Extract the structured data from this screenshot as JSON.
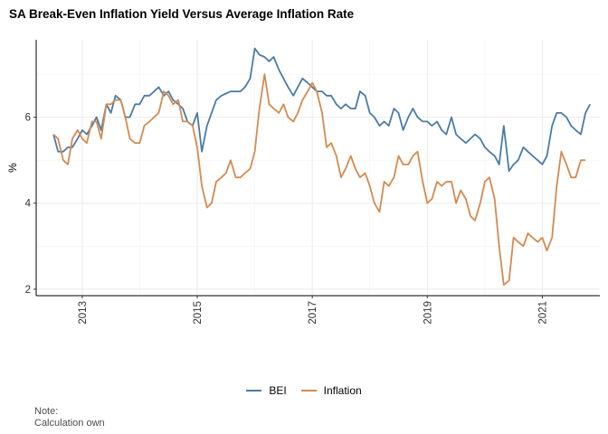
{
  "chart_data": {
    "type": "line",
    "title": "SA Break-Even Inflation Yield Versus Average Inflation Rate",
    "ylabel": "%",
    "xlabel": "",
    "xlim": [
      2012.2,
      2022.0
    ],
    "ylim": [
      1.85,
      7.8
    ],
    "x_ticks": [
      2013,
      2015,
      2017,
      2019,
      2021
    ],
    "y_ticks": [
      2,
      4,
      6
    ],
    "grid": true,
    "legend_position": "bottom",
    "series": [
      {
        "name": "BEI",
        "color": "#4A7BA7",
        "points": [
          [
            2012.5,
            5.6
          ],
          [
            2012.58,
            5.2
          ],
          [
            2012.67,
            5.2
          ],
          [
            2012.75,
            5.3
          ],
          [
            2012.83,
            5.3
          ],
          [
            2012.92,
            5.5
          ],
          [
            2013.0,
            5.7
          ],
          [
            2013.08,
            5.6
          ],
          [
            2013.17,
            5.8
          ],
          [
            2013.25,
            6.0
          ],
          [
            2013.33,
            5.7
          ],
          [
            2013.42,
            6.3
          ],
          [
            2013.5,
            6.1
          ],
          [
            2013.58,
            6.5
          ],
          [
            2013.67,
            6.4
          ],
          [
            2013.75,
            6.0
          ],
          [
            2013.83,
            6.0
          ],
          [
            2013.92,
            6.3
          ],
          [
            2014.0,
            6.3
          ],
          [
            2014.08,
            6.5
          ],
          [
            2014.17,
            6.5
          ],
          [
            2014.25,
            6.6
          ],
          [
            2014.33,
            6.7
          ],
          [
            2014.42,
            6.5
          ],
          [
            2014.5,
            6.6
          ],
          [
            2014.58,
            6.4
          ],
          [
            2014.67,
            6.3
          ],
          [
            2014.75,
            6.2
          ],
          [
            2014.83,
            5.9
          ],
          [
            2014.92,
            5.8
          ],
          [
            2015.0,
            6.1
          ],
          [
            2015.08,
            5.2
          ],
          [
            2015.17,
            5.8
          ],
          [
            2015.25,
            6.1
          ],
          [
            2015.33,
            6.4
          ],
          [
            2015.42,
            6.5
          ],
          [
            2015.5,
            6.55
          ],
          [
            2015.58,
            6.6
          ],
          [
            2015.67,
            6.6
          ],
          [
            2015.75,
            6.6
          ],
          [
            2015.83,
            6.7
          ],
          [
            2015.92,
            6.9
          ],
          [
            2016.0,
            7.6
          ],
          [
            2016.08,
            7.45
          ],
          [
            2016.17,
            7.4
          ],
          [
            2016.25,
            7.3
          ],
          [
            2016.33,
            7.4
          ],
          [
            2016.42,
            7.1
          ],
          [
            2016.5,
            6.9
          ],
          [
            2016.58,
            6.7
          ],
          [
            2016.67,
            6.5
          ],
          [
            2016.75,
            6.7
          ],
          [
            2016.83,
            6.9
          ],
          [
            2016.92,
            6.8
          ],
          [
            2017.0,
            6.7
          ],
          [
            2017.08,
            6.6
          ],
          [
            2017.17,
            6.6
          ],
          [
            2017.25,
            6.5
          ],
          [
            2017.33,
            6.5
          ],
          [
            2017.42,
            6.3
          ],
          [
            2017.5,
            6.2
          ],
          [
            2017.58,
            6.3
          ],
          [
            2017.67,
            6.2
          ],
          [
            2017.75,
            6.2
          ],
          [
            2017.83,
            6.6
          ],
          [
            2017.92,
            6.5
          ],
          [
            2018.0,
            6.1
          ],
          [
            2018.08,
            6.0
          ],
          [
            2018.17,
            5.8
          ],
          [
            2018.25,
            5.9
          ],
          [
            2018.33,
            5.8
          ],
          [
            2018.42,
            6.2
          ],
          [
            2018.5,
            6.1
          ],
          [
            2018.58,
            5.7
          ],
          [
            2018.67,
            6.0
          ],
          [
            2018.75,
            6.2
          ],
          [
            2018.83,
            6.0
          ],
          [
            2018.92,
            5.9
          ],
          [
            2019.0,
            5.9
          ],
          [
            2019.08,
            5.8
          ],
          [
            2019.17,
            5.9
          ],
          [
            2019.25,
            5.7
          ],
          [
            2019.33,
            5.6
          ],
          [
            2019.42,
            6.0
          ],
          [
            2019.5,
            5.6
          ],
          [
            2019.58,
            5.5
          ],
          [
            2019.67,
            5.4
          ],
          [
            2019.75,
            5.5
          ],
          [
            2019.83,
            5.6
          ],
          [
            2019.92,
            5.5
          ],
          [
            2020.0,
            5.3
          ],
          [
            2020.08,
            5.2
          ],
          [
            2020.17,
            5.1
          ],
          [
            2020.25,
            4.9
          ],
          [
            2020.33,
            5.8
          ],
          [
            2020.42,
            4.75
          ],
          [
            2020.5,
            4.9
          ],
          [
            2020.58,
            5.0
          ],
          [
            2020.67,
            5.3
          ],
          [
            2020.75,
            5.2
          ],
          [
            2020.83,
            5.1
          ],
          [
            2020.92,
            5.0
          ],
          [
            2021.0,
            4.9
          ],
          [
            2021.08,
            5.1
          ],
          [
            2021.17,
            5.8
          ],
          [
            2021.25,
            6.1
          ],
          [
            2021.33,
            6.1
          ],
          [
            2021.42,
            6.0
          ],
          [
            2021.5,
            5.8
          ],
          [
            2021.58,
            5.7
          ],
          [
            2021.67,
            5.6
          ],
          [
            2021.75,
            6.1
          ],
          [
            2021.83,
            6.3
          ]
        ]
      },
      {
        "name": "Inflation",
        "color": "#D58A4F",
        "points": [
          [
            2012.5,
            5.6
          ],
          [
            2012.58,
            5.5
          ],
          [
            2012.67,
            5.0
          ],
          [
            2012.75,
            4.9
          ],
          [
            2012.83,
            5.5
          ],
          [
            2012.92,
            5.7
          ],
          [
            2013.0,
            5.5
          ],
          [
            2013.08,
            5.4
          ],
          [
            2013.17,
            5.9
          ],
          [
            2013.25,
            5.9
          ],
          [
            2013.33,
            5.5
          ],
          [
            2013.42,
            6.3
          ],
          [
            2013.5,
            6.3
          ],
          [
            2013.58,
            6.4
          ],
          [
            2013.67,
            6.4
          ],
          [
            2013.75,
            6.0
          ],
          [
            2013.83,
            5.5
          ],
          [
            2013.92,
            5.4
          ],
          [
            2014.0,
            5.4
          ],
          [
            2014.08,
            5.8
          ],
          [
            2014.17,
            5.9
          ],
          [
            2014.25,
            6.0
          ],
          [
            2014.33,
            6.1
          ],
          [
            2014.42,
            6.6
          ],
          [
            2014.5,
            6.5
          ],
          [
            2014.58,
            6.3
          ],
          [
            2014.67,
            6.4
          ],
          [
            2014.75,
            5.9
          ],
          [
            2014.83,
            5.9
          ],
          [
            2014.92,
            5.8
          ],
          [
            2015.0,
            5.3
          ],
          [
            2015.08,
            4.4
          ],
          [
            2015.17,
            3.9
          ],
          [
            2015.25,
            4.0
          ],
          [
            2015.33,
            4.5
          ],
          [
            2015.42,
            4.6
          ],
          [
            2015.5,
            4.7
          ],
          [
            2015.58,
            5.0
          ],
          [
            2015.67,
            4.6
          ],
          [
            2015.75,
            4.6
          ],
          [
            2015.83,
            4.7
          ],
          [
            2015.92,
            4.8
          ],
          [
            2016.0,
            5.2
          ],
          [
            2016.08,
            6.2
          ],
          [
            2016.17,
            7.0
          ],
          [
            2016.25,
            6.3
          ],
          [
            2016.33,
            6.2
          ],
          [
            2016.42,
            6.1
          ],
          [
            2016.5,
            6.3
          ],
          [
            2016.58,
            6.0
          ],
          [
            2016.67,
            5.9
          ],
          [
            2016.75,
            6.1
          ],
          [
            2016.83,
            6.4
          ],
          [
            2016.92,
            6.6
          ],
          [
            2017.0,
            6.8
          ],
          [
            2017.08,
            6.6
          ],
          [
            2017.17,
            6.1
          ],
          [
            2017.25,
            5.3
          ],
          [
            2017.33,
            5.4
          ],
          [
            2017.42,
            5.1
          ],
          [
            2017.5,
            4.6
          ],
          [
            2017.58,
            4.8
          ],
          [
            2017.67,
            5.1
          ],
          [
            2017.75,
            4.8
          ],
          [
            2017.83,
            4.6
          ],
          [
            2017.92,
            4.7
          ],
          [
            2018.0,
            4.4
          ],
          [
            2018.08,
            4.0
          ],
          [
            2018.17,
            3.8
          ],
          [
            2018.25,
            4.5
          ],
          [
            2018.33,
            4.4
          ],
          [
            2018.42,
            4.6
          ],
          [
            2018.5,
            5.1
          ],
          [
            2018.58,
            4.9
          ],
          [
            2018.67,
            4.9
          ],
          [
            2018.75,
            5.1
          ],
          [
            2018.83,
            5.2
          ],
          [
            2018.92,
            4.5
          ],
          [
            2019.0,
            4.0
          ],
          [
            2019.08,
            4.1
          ],
          [
            2019.17,
            4.5
          ],
          [
            2019.25,
            4.4
          ],
          [
            2019.33,
            4.5
          ],
          [
            2019.42,
            4.5
          ],
          [
            2019.5,
            4.0
          ],
          [
            2019.58,
            4.3
          ],
          [
            2019.67,
            4.1
          ],
          [
            2019.75,
            3.7
          ],
          [
            2019.83,
            3.6
          ],
          [
            2019.92,
            4.0
          ],
          [
            2020.0,
            4.5
          ],
          [
            2020.08,
            4.6
          ],
          [
            2020.17,
            4.1
          ],
          [
            2020.25,
            3.0
          ],
          [
            2020.33,
            2.1
          ],
          [
            2020.42,
            2.2
          ],
          [
            2020.5,
            3.2
          ],
          [
            2020.58,
            3.1
          ],
          [
            2020.67,
            3.0
          ],
          [
            2020.75,
            3.3
          ],
          [
            2020.83,
            3.2
          ],
          [
            2020.92,
            3.1
          ],
          [
            2021.0,
            3.2
          ],
          [
            2021.08,
            2.9
          ],
          [
            2021.17,
            3.2
          ],
          [
            2021.25,
            4.4
          ],
          [
            2021.33,
            5.2
          ],
          [
            2021.42,
            4.9
          ],
          [
            2021.5,
            4.6
          ],
          [
            2021.58,
            4.6
          ],
          [
            2021.67,
            5.0
          ],
          [
            2021.75,
            5.0
          ]
        ]
      }
    ]
  },
  "note": {
    "line1": "Note:",
    "line2": "Calculation own"
  }
}
